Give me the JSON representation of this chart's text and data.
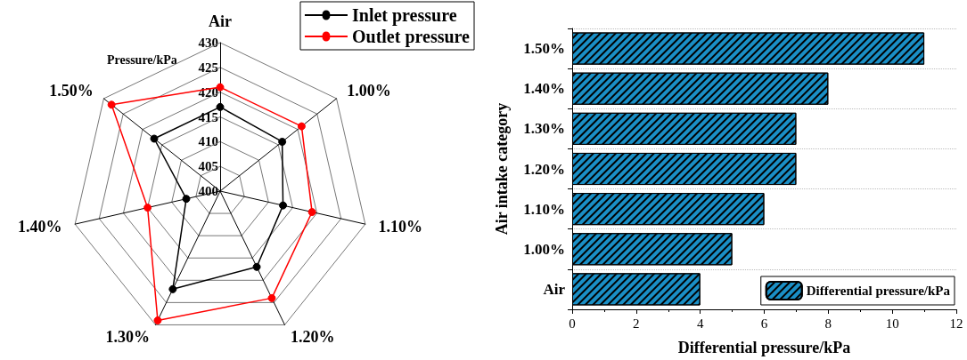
{
  "chart_data": [
    {
      "type": "radar",
      "ylabel": "Pressure/kPa",
      "categories": [
        "Air",
        "1.00%",
        "1.10%",
        "1.20%",
        "1.30%",
        "1.40%",
        "1.50%"
      ],
      "ylim": [
        400,
        430
      ],
      "yticks": [
        400,
        405,
        410,
        415,
        420,
        425,
        430
      ],
      "legend": "top right",
      "marker": "circle",
      "series": [
        {
          "name": "Inlet pressure",
          "color": "#000000",
          "values": [
            417,
            416,
            413,
            417,
            422,
            407,
            417
          ]
        },
        {
          "name": "Outlet pressure",
          "color": "#ff0000",
          "values": [
            421,
            421,
            419,
            424,
            429,
            415,
            428
          ]
        }
      ]
    },
    {
      "type": "bar",
      "orientation": "horizontal",
      "xlabel": "Differential pressure/kPa",
      "ylabel": "Air intake category",
      "categories": [
        "1.50%",
        "1.40%",
        "1.30%",
        "1.20%",
        "1.10%",
        "1.00%",
        "Air"
      ],
      "xlim": [
        0,
        12
      ],
      "xticks": [
        0,
        2,
        4,
        6,
        8,
        10,
        12
      ],
      "grid": "y",
      "legend": "bottom right",
      "series": [
        {
          "name": "Differential pressure/kPa",
          "color": "#1a8fc6",
          "values": [
            11,
            8,
            7,
            7,
            6,
            5,
            4
          ]
        }
      ]
    }
  ]
}
